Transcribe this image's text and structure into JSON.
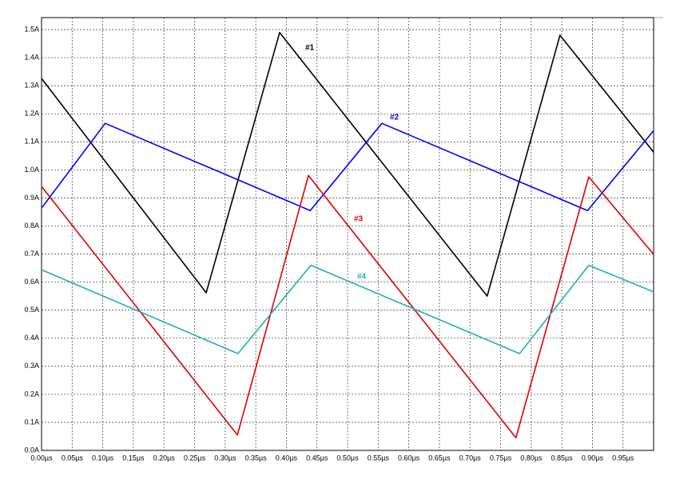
{
  "chart_data": {
    "type": "line",
    "xlim": [
      0,
      1.0
    ],
    "ylim": [
      0,
      1.543
    ],
    "xticks": [
      {
        "value": 0,
        "label": "0.00µs"
      },
      {
        "value": 0.05,
        "label": "0.05µs"
      },
      {
        "value": 0.1,
        "label": "0.10µs"
      },
      {
        "value": 0.15,
        "label": "0.15µs"
      },
      {
        "value": 0.2,
        "label": "0.20µs"
      },
      {
        "value": 0.25,
        "label": "0.25µs"
      },
      {
        "value": 0.3,
        "label": "0.30µs"
      },
      {
        "value": 0.35,
        "label": "0.35µs"
      },
      {
        "value": 0.4,
        "label": "0.40µs"
      },
      {
        "value": 0.45,
        "label": "0.45µs"
      },
      {
        "value": 0.5,
        "label": "0.50µs"
      },
      {
        "value": 0.55,
        "label": "0.55µs"
      },
      {
        "value": 0.6,
        "label": "0.60µs"
      },
      {
        "value": 0.65,
        "label": "0.65µs"
      },
      {
        "value": 0.7,
        "label": "0.70µs"
      },
      {
        "value": 0.75,
        "label": "0.75µs"
      },
      {
        "value": 0.8,
        "label": "0.80µs"
      },
      {
        "value": 0.85,
        "label": "0.85µs"
      },
      {
        "value": 0.9,
        "label": "0.90µs"
      },
      {
        "value": 0.95,
        "label": "0.95µs"
      }
    ],
    "yticks": [
      {
        "value": 0,
        "label": "0.0A"
      },
      {
        "value": 0.1,
        "label": "0.1A"
      },
      {
        "value": 0.2,
        "label": "0.2A"
      },
      {
        "value": 0.3,
        "label": "0.3A"
      },
      {
        "value": 0.4,
        "label": "0.4A"
      },
      {
        "value": 0.5,
        "label": "0.5A"
      },
      {
        "value": 0.6,
        "label": "0.6A"
      },
      {
        "value": 0.7,
        "label": "0.7A"
      },
      {
        "value": 0.8,
        "label": "0.8A"
      },
      {
        "value": 0.9,
        "label": "0.9A"
      },
      {
        "value": 1.0,
        "label": "1.0A"
      },
      {
        "value": 1.1,
        "label": "1.1A"
      },
      {
        "value": 1.2,
        "label": "1.2A"
      },
      {
        "value": 1.3,
        "label": "1.3A"
      },
      {
        "value": 1.4,
        "label": "1.4A"
      },
      {
        "value": 1.5,
        "label": "1.5A"
      }
    ],
    "grid": true,
    "series": [
      {
        "name": "#1",
        "color": "#000000",
        "x": [
          0,
          0.269,
          0.389,
          0.728,
          0.847,
          1.0
        ],
        "values": [
          1.326,
          0.562,
          1.49,
          0.55,
          1.48,
          1.063
        ]
      },
      {
        "name": "#2",
        "color": "#0000ff",
        "x": [
          0,
          0.104,
          0.439,
          0.556,
          0.892,
          1.0
        ],
        "values": [
          0.864,
          1.166,
          0.855,
          1.166,
          0.855,
          1.14
        ]
      },
      {
        "name": "#3",
        "color": "#e00000",
        "x": [
          0,
          0.32,
          0.436,
          0.775,
          0.894,
          1.0
        ],
        "values": [
          0.941,
          0.055,
          0.98,
          0.045,
          0.975,
          0.699
        ]
      },
      {
        "name": "#4",
        "color": "#20b0b0",
        "x": [
          0,
          0.321,
          0.44,
          0.781,
          0.894,
          1.0
        ],
        "values": [
          0.644,
          0.345,
          0.66,
          0.345,
          0.66,
          0.565
        ]
      }
    ]
  }
}
